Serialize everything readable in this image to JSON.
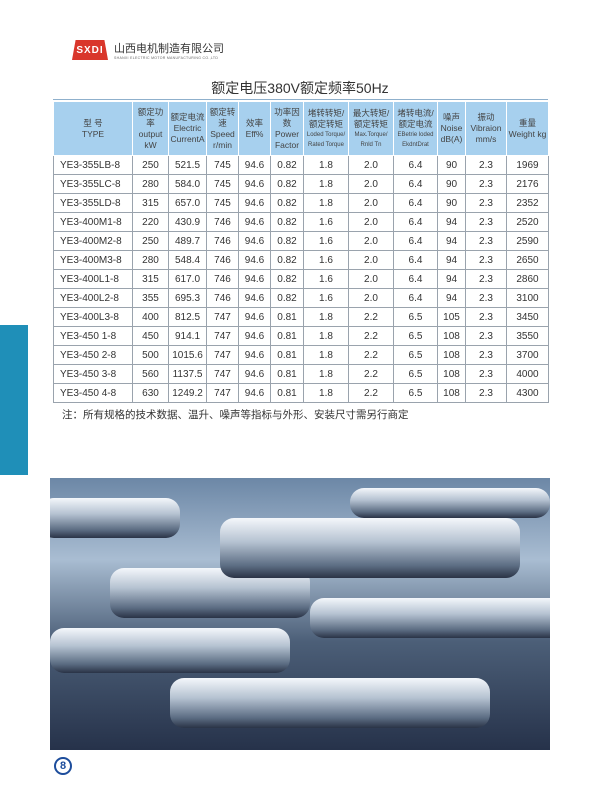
{
  "header": {
    "logo_mark": "SXDI",
    "company_cn": "山西电机制造有限公司",
    "company_en": "SHANXI ELECTRIC MOTOR MANUFACTURING CO.,LTD"
  },
  "title": "额定电压380V额定频率50Hz",
  "table": {
    "headers": [
      {
        "cn": "型 号",
        "en": "TYPE"
      },
      {
        "cn": "额定功率",
        "en": "output kW"
      },
      {
        "cn": "额定电流",
        "en": "Electric CurrentA"
      },
      {
        "cn": "额定转速",
        "en": "Speed r/min"
      },
      {
        "cn": "效率",
        "en": "Eff%"
      },
      {
        "cn": "功率因数",
        "en": "Power Factor"
      },
      {
        "cn": "堵转转矩/额定转矩",
        "en": "Loded Torque/ Rated Torque"
      },
      {
        "cn": "最大转矩/额定转矩",
        "en": "Max.Torque/ Rnld Tn"
      },
      {
        "cn": "堵转电流/额定电流",
        "en": "EBetrie loded EkdntDrat"
      },
      {
        "cn": "噪声",
        "en": "Noise dB(A)"
      },
      {
        "cn": "振动",
        "en": "Vibraion mm/s"
      },
      {
        "cn": "重量",
        "en": "Weight kg"
      }
    ],
    "rows": [
      [
        "YE3-355LB-8",
        "250",
        "521.5",
        "745",
        "94.6",
        "0.82",
        "1.8",
        "2.0",
        "6.4",
        "90",
        "2.3",
        "1969"
      ],
      [
        "YE3-355LC-8",
        "280",
        "584.0",
        "745",
        "94.6",
        "0.82",
        "1.8",
        "2.0",
        "6.4",
        "90",
        "2.3",
        "2176"
      ],
      [
        "YE3-355LD-8",
        "315",
        "657.0",
        "745",
        "94.6",
        "0.82",
        "1.8",
        "2.0",
        "6.4",
        "90",
        "2.3",
        "2352"
      ],
      [
        "YE3-400M1-8",
        "220",
        "430.9",
        "746",
        "94.6",
        "0.82",
        "1.6",
        "2.0",
        "6.4",
        "94",
        "2.3",
        "2520"
      ],
      [
        "YE3-400M2-8",
        "250",
        "489.7",
        "746",
        "94.6",
        "0.82",
        "1.6",
        "2.0",
        "6.4",
        "94",
        "2.3",
        "2590"
      ],
      [
        "YE3-400M3-8",
        "280",
        "548.4",
        "746",
        "94.6",
        "0.82",
        "1.6",
        "2.0",
        "6.4",
        "94",
        "2.3",
        "2650"
      ],
      [
        "YE3-400L1-8",
        "315",
        "617.0",
        "746",
        "94.6",
        "0.82",
        "1.6",
        "2.0",
        "6.4",
        "94",
        "2.3",
        "2860"
      ],
      [
        "YE3-400L2-8",
        "355",
        "695.3",
        "746",
        "94.6",
        "0.82",
        "1.6",
        "2.0",
        "6.4",
        "94",
        "2.3",
        "3100"
      ],
      [
        "YE3-400L3-8",
        "400",
        "812.5",
        "747",
        "94.6",
        "0.81",
        "1.8",
        "2.2",
        "6.5",
        "105",
        "2.3",
        "3450"
      ],
      [
        "YE3-450 1-8",
        "450",
        "914.1",
        "747",
        "94.6",
        "0.81",
        "1.8",
        "2.2",
        "6.5",
        "108",
        "2.3",
        "3550"
      ],
      [
        "YE3-450 2-8",
        "500",
        "1015.6",
        "747",
        "94.6",
        "0.81",
        "1.8",
        "2.2",
        "6.5",
        "108",
        "2.3",
        "3700"
      ],
      [
        "YE3-450 3-8",
        "560",
        "1137.5",
        "747",
        "94.6",
        "0.81",
        "1.8",
        "2.2",
        "6.5",
        "108",
        "2.3",
        "4000"
      ],
      [
        "YE3-450 4-8",
        "630",
        "1249.2",
        "747",
        "94.6",
        "0.81",
        "1.8",
        "2.2",
        "6.5",
        "108",
        "2.3",
        "4300"
      ]
    ]
  },
  "note": "注：所有规格的技术数据、温升、噪声等指标与外形、安装尺寸需另行商定",
  "page_number": "8",
  "colors": {
    "header_bg": "#a7d0ee",
    "sidebar": "#1f8fb8",
    "logo": "#d9362b",
    "page_number": "#1d4d9c"
  }
}
